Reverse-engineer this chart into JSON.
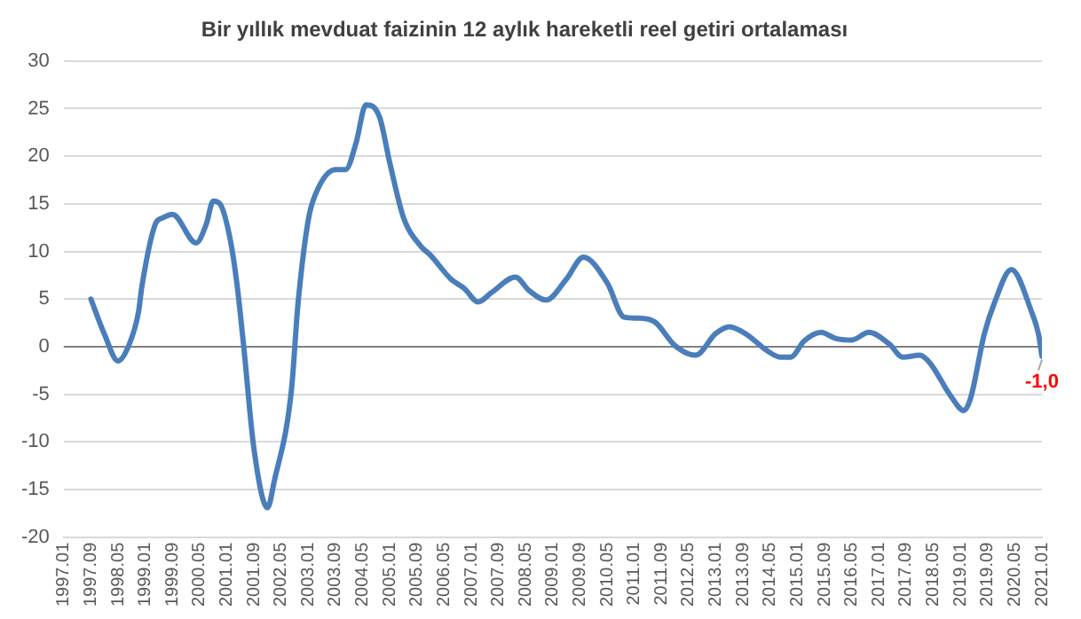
{
  "chart_data": {
    "type": "line",
    "title": "Bir yıllık mevduat faizinin 12 aylık hareketli reel getiri ortalaması",
    "x": [
      "1997-09",
      "1998-01",
      "1998-05",
      "1998-08",
      "1998-11",
      "1998-12",
      "1999-04",
      "1999-06",
      "1999-09",
      "2000-04",
      "2000-07",
      "2000-09",
      "2000-11",
      "2001-02",
      "2001-04",
      "2001-06",
      "2001-09",
      "2002-01",
      "2002-03",
      "2002-08",
      "2002-10",
      "2003-01",
      "2003-03",
      "2003-09",
      "2003-12",
      "2004-03",
      "2004-06",
      "2004-10",
      "2005-01",
      "2005-05",
      "2005-10",
      "2006-01",
      "2006-07",
      "2006-11",
      "2007-03",
      "2007-07",
      "2008-02",
      "2008-06",
      "2008-11",
      "2009-05",
      "2009-10",
      "2010-05",
      "2010-10",
      "2011-02",
      "2011-07",
      "2012-01",
      "2012-07",
      "2013-01",
      "2013-05",
      "2013-10",
      "2014-04",
      "2014-08",
      "2014-11",
      "2015-03",
      "2015-08",
      "2015-12",
      "2016-05",
      "2016-10",
      "2017-04",
      "2017-08",
      "2018-01",
      "2018-04",
      "2018-10",
      "2019-02",
      "2019-04",
      "2019-08",
      "2019-11",
      "2020-04",
      "2020-10",
      "2020-12",
      "2021-01"
    ],
    "series": [
      {
        "color": "#4a7ebb",
        "values": [
          5.0,
          1.3,
          -1.5,
          0,
          3.6,
          6.3,
          12.9,
          13.5,
          13.9,
          10.9,
          12.9,
          15.3,
          15.0,
          11.3,
          6.6,
          0,
          -10.7,
          -16.9,
          -14.1,
          -4.7,
          4.6,
          13.3,
          15.9,
          18.6,
          18.6,
          21.3,
          25.4,
          24.1,
          19.3,
          13.6,
          10.6,
          9.6,
          7.1,
          6.1,
          4.7,
          5.7,
          7.3,
          5.9,
          4.9,
          7.1,
          9.4,
          6.7,
          3.1,
          3.0,
          2.6,
          0.1,
          -0.9,
          1.4,
          2.1,
          1.3,
          -0.4,
          -1.1,
          -1.1,
          0.6,
          1.5,
          0.9,
          0.7,
          1.5,
          0.3,
          -1.1,
          -0.9,
          -1.7,
          -5.1,
          -6.7,
          -5.4,
          1.3,
          4.6,
          8.1,
          3.6,
          1.3,
          -1.0
        ]
      }
    ],
    "xlim": [
      "1997-01",
      "2021-01"
    ],
    "xticks": [
      {
        "value": "1997-01",
        "label": "1997.01"
      },
      {
        "value": "1997-09",
        "label": "1997.09"
      },
      {
        "value": "1998-05",
        "label": "1998.05"
      },
      {
        "value": "1999-01",
        "label": "1999.01"
      },
      {
        "value": "1999-09",
        "label": "1999.09"
      },
      {
        "value": "2000-05",
        "label": "2000.05"
      },
      {
        "value": "2001-01",
        "label": "2001.01"
      },
      {
        "value": "2001-09",
        "label": "2001.09"
      },
      {
        "value": "2002-05",
        "label": "2002.05"
      },
      {
        "value": "2003-01",
        "label": "2003.01"
      },
      {
        "value": "2003-09",
        "label": "2003.09"
      },
      {
        "value": "2004-05",
        "label": "2004.05"
      },
      {
        "value": "2005-01",
        "label": "2005.01"
      },
      {
        "value": "2005-09",
        "label": "2005.09"
      },
      {
        "value": "2006-05",
        "label": "2006.05"
      },
      {
        "value": "2007-01",
        "label": "2007.01"
      },
      {
        "value": "2007-09",
        "label": "2007.09"
      },
      {
        "value": "2008-05",
        "label": "2008.05"
      },
      {
        "value": "2009-01",
        "label": "2009.01"
      },
      {
        "value": "2009-09",
        "label": "2009.09"
      },
      {
        "value": "2010-05",
        "label": "2010.05"
      },
      {
        "value": "2011-01",
        "label": "2011.01"
      },
      {
        "value": "2011-09",
        "label": "2011.09"
      },
      {
        "value": "2012-05",
        "label": "2012.05"
      },
      {
        "value": "2013-01",
        "label": "2013.01"
      },
      {
        "value": "2013-09",
        "label": "2013.09"
      },
      {
        "value": "2014-05",
        "label": "2014.05"
      },
      {
        "value": "2015-01",
        "label": "2015.01"
      },
      {
        "value": "2015-09",
        "label": "2015.09"
      },
      {
        "value": "2016-05",
        "label": "2016.05"
      },
      {
        "value": "2017-01",
        "label": "2017.01"
      },
      {
        "value": "2017-09",
        "label": "2017.09"
      },
      {
        "value": "2018-05",
        "label": "2018.05"
      },
      {
        "value": "2019-01",
        "label": "2019.01"
      },
      {
        "value": "2019-09",
        "label": "2019.09"
      },
      {
        "value": "2020-05",
        "label": "2020.05"
      },
      {
        "value": "2021-01",
        "label": "2021.01"
      }
    ],
    "ylim": [
      -20,
      30
    ],
    "yticks": [
      -20,
      -15,
      -10,
      -5,
      0,
      5,
      10,
      15,
      20,
      25,
      30
    ],
    "grid": "y",
    "legend": false,
    "marker": "none",
    "line_style": "solid",
    "annotations": [
      {
        "text": "-1,0",
        "x": "2021-01",
        "y": -1.0
      }
    ]
  }
}
